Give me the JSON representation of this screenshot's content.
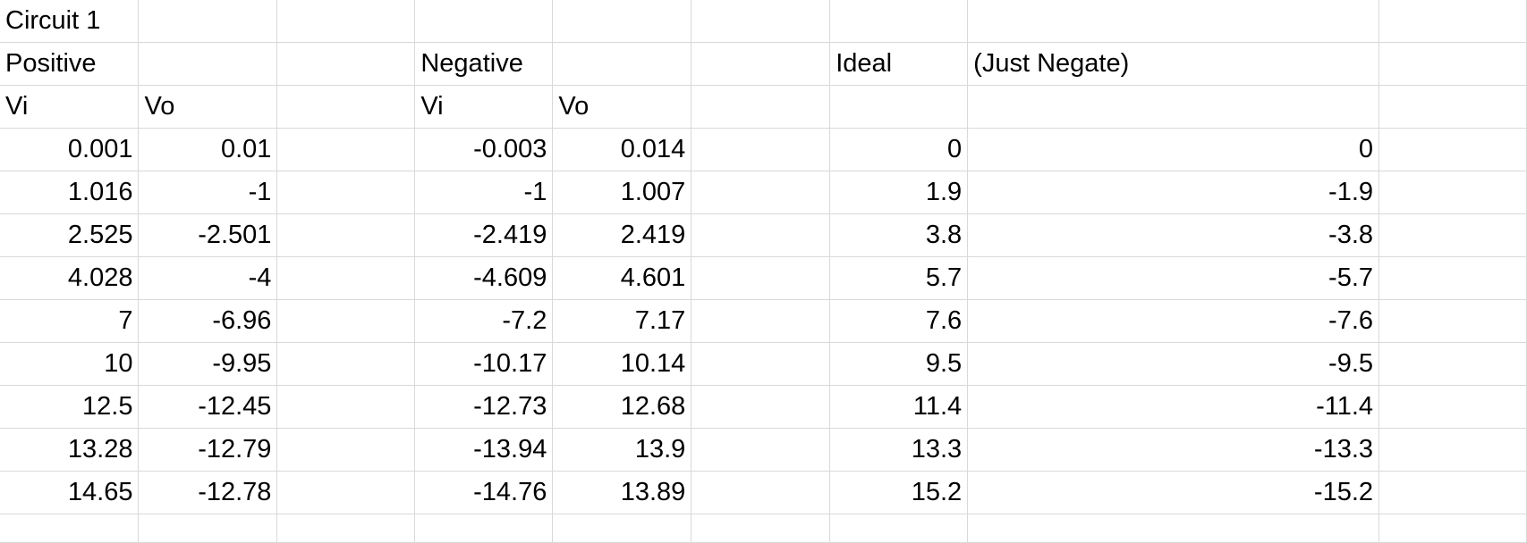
{
  "sheet": {
    "rows": [
      [
        "Circuit 1",
        "",
        "",
        "",
        "",
        "",
        "",
        "",
        "",
        "",
        ""
      ],
      [
        "Positive",
        "",
        "",
        "Negative",
        "",
        "",
        "Ideal",
        "(Just Negate)",
        "",
        "",
        ""
      ],
      [
        "Vi",
        "Vo",
        "",
        "Vi",
        "Vo",
        "",
        "",
        "",
        "",
        "",
        ""
      ],
      [
        "0.001",
        "0.01",
        "",
        "-0.003",
        "0.014",
        "",
        "0",
        "0",
        "",
        "",
        ""
      ],
      [
        "1.016",
        "-1",
        "",
        "-1",
        "1.007",
        "",
        "1.9",
        "-1.9",
        "",
        "",
        ""
      ],
      [
        "2.525",
        "-2.501",
        "",
        "-2.419",
        "2.419",
        "",
        "3.8",
        "-3.8",
        "",
        "",
        ""
      ],
      [
        "4.028",
        "-4",
        "",
        "-4.609",
        "4.601",
        "",
        "5.7",
        "-5.7",
        "",
        "",
        ""
      ],
      [
        "7",
        "-6.96",
        "",
        "-7.2",
        "7.17",
        "",
        "7.6",
        "-7.6",
        "",
        "",
        ""
      ],
      [
        "10",
        "-9.95",
        "",
        "-10.17",
        "10.14",
        "",
        "9.5",
        "-9.5",
        "",
        "",
        ""
      ],
      [
        "12.5",
        "-12.45",
        "",
        "-12.73",
        "12.68",
        "",
        "11.4",
        "-11.4",
        "",
        "",
        ""
      ],
      [
        "13.28",
        "-12.79",
        "",
        "-13.94",
        "13.9",
        "",
        "13.3",
        "-13.3",
        "",
        "",
        ""
      ],
      [
        "14.65",
        "-12.78",
        "",
        "-14.76",
        "13.89",
        "",
        "15.2",
        "-15.2",
        "",
        "",
        ""
      ],
      [
        "",
        "",
        "",
        "",
        "",
        "",
        "",
        "",
        "",
        "",
        ""
      ]
    ]
  }
}
